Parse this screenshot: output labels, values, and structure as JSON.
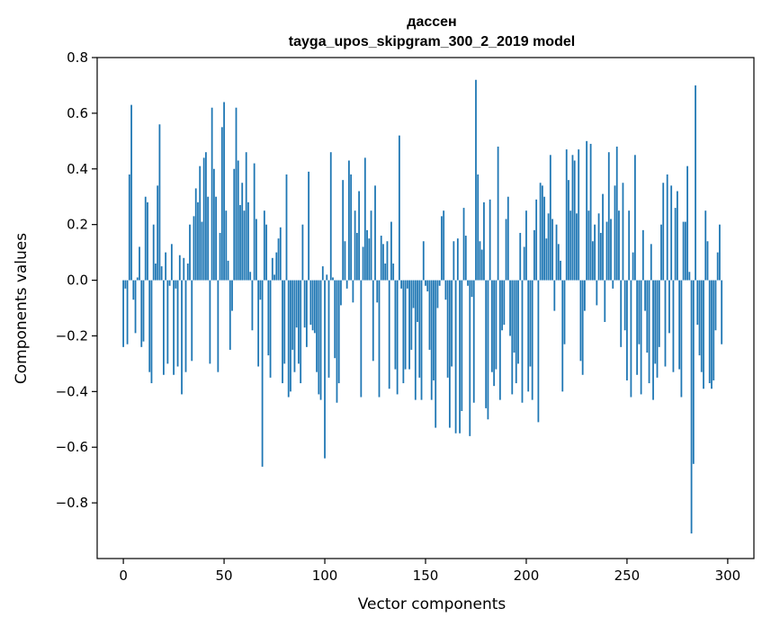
{
  "chart_data": {
    "type": "bar",
    "title": "дассен",
    "subtitle": "tayga_upos_skipgram_300_2_2019 model",
    "xlabel": "Vector components",
    "ylabel": "Components values",
    "xlim": [
      -13,
      313
    ],
    "ylim": [
      -1.0,
      0.8
    ],
    "xticks": [
      0,
      50,
      100,
      150,
      200,
      250,
      300
    ],
    "xtick_labels": [
      "0",
      "50",
      "100",
      "150",
      "200",
      "250",
      "300"
    ],
    "yticks": [
      -0.8,
      -0.6,
      -0.4,
      -0.2,
      0.0,
      0.2,
      0.4,
      0.6,
      0.8
    ],
    "ytick_labels": [
      "−0.8",
      "−0.6",
      "−0.4",
      "−0.2",
      "0.0",
      "0.2",
      "0.4",
      "0.6",
      "0.8"
    ],
    "bar_color": "#1f77b4",
    "grid": false,
    "values": [
      -0.24,
      -0.03,
      -0.23,
      0.38,
      0.63,
      -0.07,
      -0.19,
      0.01,
      0.12,
      -0.24,
      -0.22,
      0.3,
      0.28,
      -0.33,
      -0.37,
      0.2,
      0.06,
      0.34,
      0.56,
      0.05,
      -0.34,
      0.1,
      -0.3,
      -0.02,
      0.13,
      -0.34,
      -0.03,
      -0.31,
      0.09,
      -0.41,
      0.08,
      -0.33,
      0.06,
      0.2,
      -0.29,
      0.23,
      0.33,
      0.28,
      0.41,
      0.21,
      0.44,
      0.46,
      0.3,
      -0.3,
      0.62,
      0.4,
      0.3,
      -0.33,
      0.17,
      0.55,
      0.64,
      0.25,
      0.07,
      -0.25,
      -0.11,
      0.4,
      0.62,
      0.43,
      0.27,
      0.35,
      0.25,
      0.46,
      0.28,
      0.03,
      -0.18,
      0.42,
      0.22,
      -0.31,
      -0.07,
      -0.67,
      0.25,
      0.2,
      -0.27,
      -0.35,
      0.08,
      0.02,
      0.1,
      0.15,
      0.19,
      -0.37,
      -0.3,
      0.38,
      -0.42,
      -0.4,
      -0.25,
      -0.33,
      -0.17,
      -0.3,
      -0.37,
      0.2,
      -0.17,
      -0.24,
      0.39,
      -0.16,
      -0.18,
      -0.19,
      -0.33,
      -0.41,
      -0.43,
      0.05,
      -0.64,
      0.02,
      -0.35,
      0.46,
      0.01,
      -0.28,
      -0.44,
      -0.37,
      -0.09,
      0.36,
      0.14,
      -0.03,
      0.43,
      0.38,
      -0.08,
      0.25,
      0.17,
      0.32,
      -0.42,
      0.12,
      0.44,
      0.18,
      0.15,
      0.25,
      -0.29,
      0.34,
      -0.08,
      -0.42,
      0.16,
      0.13,
      0.06,
      0.14,
      -0.39,
      0.21,
      0.06,
      -0.32,
      -0.41,
      0.52,
      -0.03,
      -0.37,
      -0.32,
      -0.03,
      -0.32,
      -0.25,
      -0.1,
      -0.43,
      -0.15,
      -0.35,
      -0.43,
      0.14,
      -0.02,
      -0.04,
      -0.25,
      -0.43,
      -0.36,
      -0.53,
      -0.1,
      -0.02,
      0.23,
      0.25,
      -0.07,
      -0.35,
      -0.53,
      -0.31,
      0.14,
      -0.55,
      0.15,
      -0.55,
      -0.47,
      0.26,
      0.16,
      -0.02,
      -0.56,
      -0.06,
      -0.44,
      0.72,
      0.38,
      0.14,
      0.11,
      0.28,
      -0.46,
      -0.5,
      0.29,
      -0.33,
      -0.38,
      -0.32,
      0.48,
      -0.43,
      -0.18,
      -0.16,
      0.22,
      0.3,
      -0.2,
      -0.41,
      -0.26,
      -0.37,
      -0.3,
      0.17,
      -0.44,
      0.12,
      0.25,
      -0.4,
      -0.31,
      -0.43,
      0.18,
      0.29,
      -0.51,
      0.35,
      0.34,
      0.3,
      0.15,
      0.24,
      0.45,
      0.22,
      -0.11,
      0.2,
      0.13,
      0.07,
      -0.4,
      -0.23,
      0.47,
      0.36,
      0.25,
      0.45,
      0.43,
      0.24,
      0.47,
      -0.29,
      -0.34,
      -0.11,
      0.5,
      0.25,
      0.49,
      0.14,
      0.2,
      -0.09,
      0.24,
      0.17,
      0.31,
      -0.15,
      0.21,
      0.46,
      0.22,
      -0.03,
      0.34,
      0.48,
      0.25,
      -0.24,
      0.35,
      -0.18,
      -0.36,
      0.25,
      -0.42,
      0.1,
      0.45,
      -0.34,
      -0.23,
      -0.41,
      0.18,
      -0.11,
      -0.26,
      -0.37,
      0.13,
      -0.43,
      -0.3,
      -0.35,
      -0.24,
      0.2,
      0.35,
      -0.31,
      0.38,
      -0.19,
      0.34,
      -0.33,
      0.26,
      0.32,
      -0.32,
      -0.42,
      0.21,
      0.21,
      0.41,
      0.03,
      -0.91,
      -0.66,
      0.7,
      -0.16,
      -0.27,
      -0.33,
      -0.39,
      0.25,
      0.14,
      -0.37,
      -0.39,
      -0.36,
      -0.18,
      0.1,
      0.2,
      -0.23
    ]
  }
}
